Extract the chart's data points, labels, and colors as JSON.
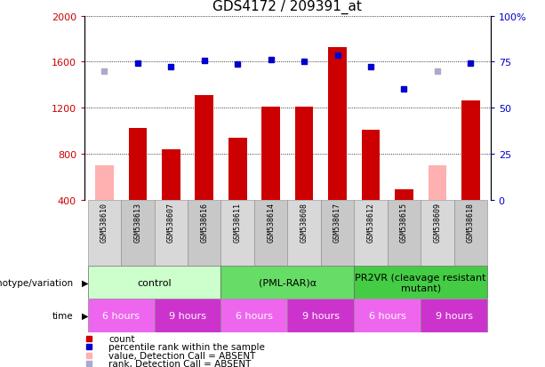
{
  "title": "GDS4172 / 209391_at",
  "samples": [
    "GSM538610",
    "GSM538613",
    "GSM538607",
    "GSM538616",
    "GSM538611",
    "GSM538614",
    "GSM538608",
    "GSM538617",
    "GSM538612",
    "GSM538615",
    "GSM538609",
    "GSM538618"
  ],
  "count_values": [
    null,
    1020,
    840,
    1310,
    940,
    1210,
    1210,
    1730,
    1010,
    490,
    null,
    1260
  ],
  "count_absent": [
    700,
    null,
    null,
    null,
    null,
    null,
    null,
    null,
    null,
    null,
    700,
    null
  ],
  "rank_values": [
    null,
    1590,
    1560,
    1610,
    1580,
    1620,
    1600,
    1660,
    1560,
    1360,
    null,
    1590
  ],
  "rank_absent": [
    1520,
    null,
    null,
    null,
    null,
    null,
    null,
    null,
    null,
    null,
    1520,
    null
  ],
  "ylim_left": [
    400,
    2000
  ],
  "ylim_right": [
    0,
    100
  ],
  "yticks_left": [
    400,
    800,
    1200,
    1600,
    2000
  ],
  "yticks_right": [
    0,
    25,
    50,
    75,
    100
  ],
  "bar_color": "#cc0000",
  "bar_absent_color": "#ffb0b0",
  "dot_color": "#0000cc",
  "dot_absent_color": "#aaaacc",
  "genotype_groups": [
    {
      "label": "control",
      "start": 0,
      "end": 4,
      "color": "#ccffcc"
    },
    {
      "label": "(PML-RAR)α",
      "start": 4,
      "end": 8,
      "color": "#66dd66"
    },
    {
      "label": "PR2VR (cleavage resistant\nmutant)",
      "start": 8,
      "end": 12,
      "color": "#44cc44"
    }
  ],
  "time_groups": [
    {
      "label": "6 hours",
      "start": 0,
      "end": 2,
      "color": "#ee66ee"
    },
    {
      "label": "9 hours",
      "start": 2,
      "end": 4,
      "color": "#cc33cc"
    },
    {
      "label": "6 hours",
      "start": 4,
      "end": 6,
      "color": "#ee66ee"
    },
    {
      "label": "9 hours",
      "start": 6,
      "end": 8,
      "color": "#cc33cc"
    },
    {
      "label": "6 hours",
      "start": 8,
      "end": 10,
      "color": "#ee66ee"
    },
    {
      "label": "9 hours",
      "start": 10,
      "end": 12,
      "color": "#cc33cc"
    }
  ],
  "legend_items": [
    {
      "label": "count",
      "color": "#cc0000"
    },
    {
      "label": "percentile rank within the sample",
      "color": "#0000cc"
    },
    {
      "label": "value, Detection Call = ABSENT",
      "color": "#ffb0b0"
    },
    {
      "label": "rank, Detection Call = ABSENT",
      "color": "#aaaacc"
    }
  ],
  "left_axis_color": "#cc0000",
  "right_axis_color": "#0000cc",
  "bg_color": "#ffffff",
  "grid_color": "#000000",
  "bar_width": 0.55,
  "sample_bg_even": "#d8d8d8",
  "sample_bg_odd": "#c8c8c8"
}
